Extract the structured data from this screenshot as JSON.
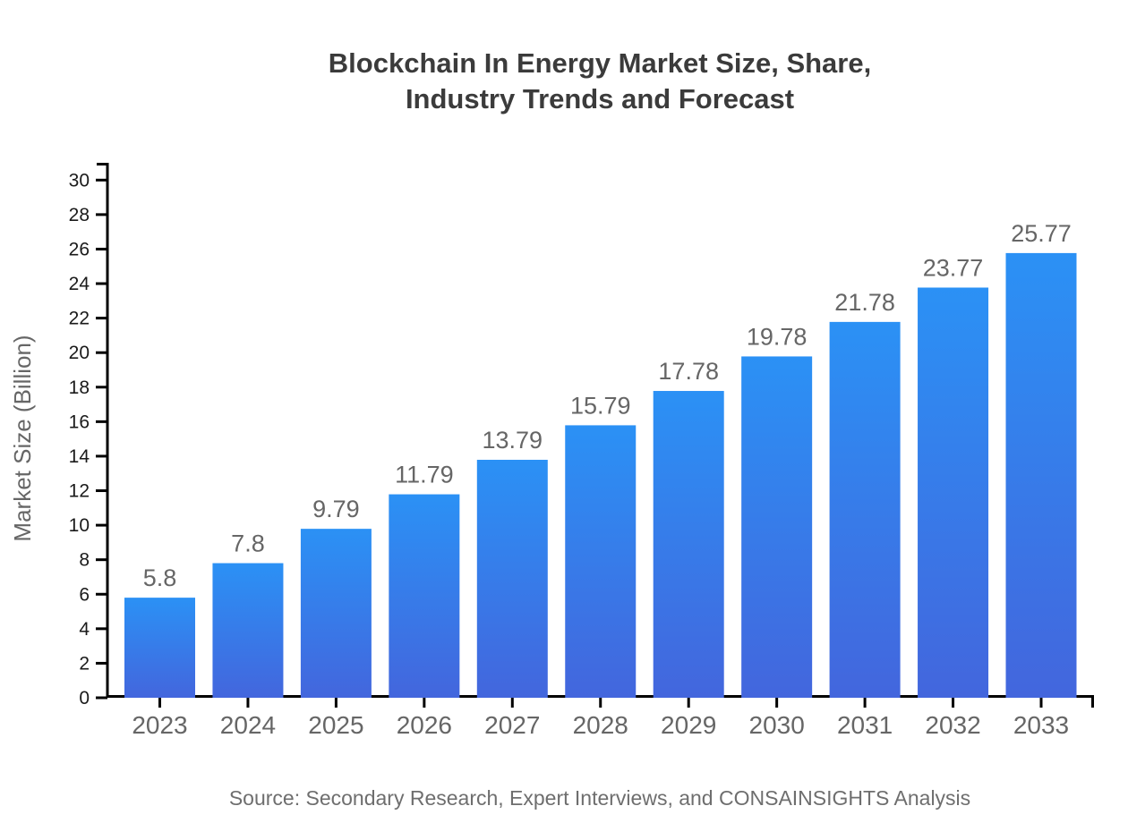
{
  "page": {
    "background": "#ffffff"
  },
  "chart_data": {
    "type": "bar",
    "title": "Blockchain In Energy Market Size, Share, Industry Trends and Forecast",
    "title_lines": [
      "Blockchain In Energy Market Size, Share,",
      "Industry Trends and Forecast"
    ],
    "ylabel": "Market Size (Billion)",
    "xlabel": "",
    "categories": [
      "2023",
      "2024",
      "2025",
      "2026",
      "2027",
      "2028",
      "2029",
      "2030",
      "2031",
      "2032",
      "2033"
    ],
    "values": [
      5.8,
      7.8,
      9.79,
      11.79,
      13.79,
      15.79,
      17.78,
      19.78,
      21.78,
      23.77,
      25.77
    ],
    "bar_labels": [
      "5.8",
      "7.8",
      "9.79",
      "11.79",
      "13.79",
      "15.79",
      "17.78",
      "19.78",
      "21.78",
      "23.77",
      "25.77"
    ],
    "ylim": [
      0,
      30
    ],
    "ytick_step": 2,
    "ytick_labels": [
      "0",
      "2",
      "4",
      "6",
      "8",
      "10",
      "12",
      "14",
      "16",
      "18",
      "20",
      "22",
      "24",
      "26",
      "28",
      "30"
    ],
    "grid": false,
    "legend": null,
    "source": "Source: Secondary Research, Expert Interviews, and CONSAINSIGHTS Analysis",
    "colors": {
      "bar_gradient_top": "#2b91f5",
      "bar_gradient_bottom": "#4366dd",
      "axis": "#000000",
      "title": "#3b3b3b",
      "ytick_label": "#1a1a1a",
      "xtick_label": "#666666",
      "value_label": "#666666",
      "axis_label": "#666666",
      "source": "#6e6e6e",
      "background": "#ffffff"
    }
  }
}
